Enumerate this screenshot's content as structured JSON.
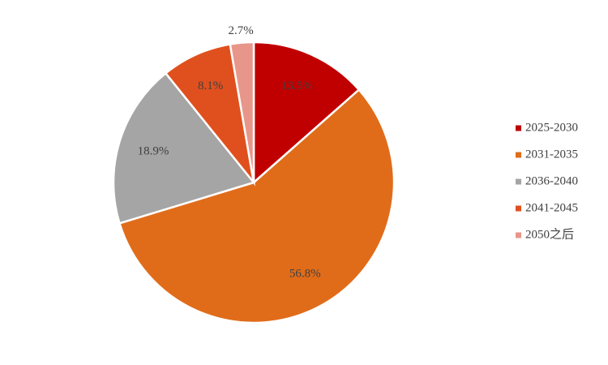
{
  "chart_data": {
    "type": "pie",
    "categories": [
      "2025-2030",
      "2031-2035",
      "2036-2040",
      "2041-2045",
      "2050之后"
    ],
    "values": [
      13.5,
      56.8,
      18.9,
      8.1,
      2.7
    ],
    "value_labels": [
      "13.5%",
      "56.8%",
      "18.9%",
      "8.1%",
      "2.7%"
    ],
    "colors": [
      "#c00000",
      "#e06c1a",
      "#a5a5a5",
      "#e0501e",
      "#e8968a"
    ],
    "legend": "right"
  }
}
